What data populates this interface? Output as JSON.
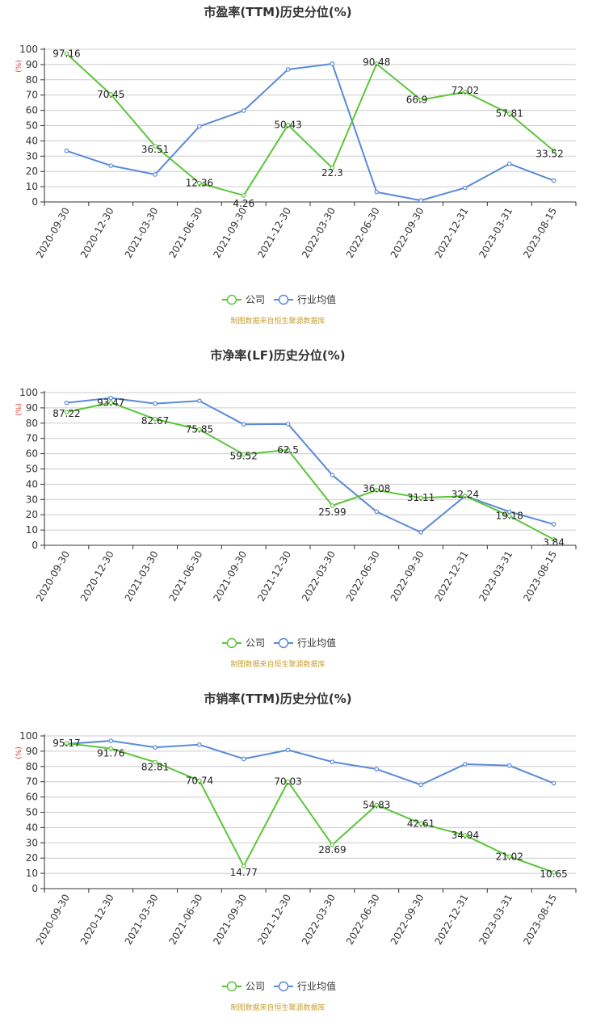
{
  "legend": [
    "公司",
    "行业均值"
  ],
  "source": "制图数据来自恒生聚源数据库",
  "colors": {
    "company": "#5cc53a",
    "industry": "#5b8ad8",
    "unit": "#e0302a",
    "source": "#c8a030"
  },
  "chart_data": [
    {
      "type": "line",
      "title": "市盈率(TTM)历史分位(%)",
      "ylabel": "(%)",
      "ylim": [
        0,
        100
      ],
      "yticks": [
        0,
        10,
        20,
        30,
        40,
        50,
        60,
        70,
        80,
        90,
        100
      ],
      "grid": true,
      "legend_position": "bottom",
      "x": [
        "2020-09-30",
        "2020-12-30",
        "2021-03-30",
        "2021-06-30",
        "2021-09-30",
        "2021-12-30",
        "2022-03-30",
        "2022-06-30",
        "2022-09-30",
        "2022-12-31",
        "2023-03-31",
        "2023-08-15"
      ],
      "series": [
        {
          "name": "公司",
          "values": [
            97.16,
            70.45,
            36.51,
            12.36,
            4.26,
            50.43,
            22.3,
            90.48,
            66.9,
            72.02,
            57.81,
            33.52
          ],
          "labels": [
            "97.16",
            "70.45",
            "36.51",
            "12.36",
            "4.26",
            "50.43",
            "22.3",
            "90.48",
            "66.9",
            "72.02",
            "57.81",
            "33.52"
          ]
        },
        {
          "name": "行业均值",
          "values": [
            33.5,
            23.8,
            18.0,
            49.5,
            59.8,
            86.8,
            90.5,
            6.5,
            1.0,
            9.3,
            25.0,
            14.0
          ]
        }
      ]
    },
    {
      "type": "line",
      "title": "市净率(LF)历史分位(%)",
      "ylabel": "(%)",
      "ylim": [
        0,
        100
      ],
      "yticks": [
        0,
        10,
        20,
        30,
        40,
        50,
        60,
        70,
        80,
        90,
        100
      ],
      "grid": true,
      "legend_position": "bottom",
      "x": [
        "2020-09-30",
        "2020-12-30",
        "2021-03-30",
        "2021-06-30",
        "2021-09-30",
        "2021-12-30",
        "2022-03-30",
        "2022-06-30",
        "2022-09-30",
        "2022-12-31",
        "2023-03-31",
        "2023-08-15"
      ],
      "series": [
        {
          "name": "公司",
          "values": [
            87.22,
            93.47,
            82.67,
            75.85,
            59.52,
            62.5,
            25.99,
            36.08,
            31.11,
            32.24,
            19.18,
            3.84
          ],
          "labels": [
            "87.22",
            "93.47",
            "82.67",
            "75.85",
            "59.52",
            "62.5",
            "25.99",
            "36.08",
            "31.11",
            "32.24",
            "19.18",
            "3.84"
          ]
        },
        {
          "name": "行业均值",
          "values": [
            93.3,
            96.5,
            92.8,
            94.6,
            79.2,
            79.4,
            46.0,
            22.0,
            8.5,
            32.3,
            22.0,
            13.8
          ]
        }
      ]
    },
    {
      "type": "line",
      "title": "市销率(TTM)历史分位(%)",
      "ylabel": "(%)",
      "ylim": [
        0,
        100
      ],
      "yticks": [
        0,
        10,
        20,
        30,
        40,
        50,
        60,
        70,
        80,
        90,
        100
      ],
      "grid": true,
      "legend_position": "bottom",
      "x": [
        "2020-09-30",
        "2020-12-30",
        "2021-03-30",
        "2021-06-30",
        "2021-09-30",
        "2021-12-30",
        "2022-03-30",
        "2022-06-30",
        "2022-09-30",
        "2022-12-31",
        "2023-03-31",
        "2023-08-15"
      ],
      "series": [
        {
          "name": "公司",
          "values": [
            95.17,
            91.76,
            82.81,
            70.74,
            14.77,
            70.03,
            28.69,
            54.83,
            42.61,
            34.94,
            21.02,
            10.65
          ],
          "labels": [
            "95.17",
            "91.76",
            "82.81",
            "70.74",
            "14.77",
            "70.03",
            "28.69",
            "54.83",
            "42.61",
            "34.94",
            "21.02",
            "10.65"
          ]
        },
        {
          "name": "行业均值",
          "values": [
            94.8,
            96.8,
            92.5,
            94.3,
            85.0,
            90.8,
            83.0,
            78.3,
            68.0,
            81.5,
            80.6,
            69.0
          ]
        }
      ]
    }
  ]
}
